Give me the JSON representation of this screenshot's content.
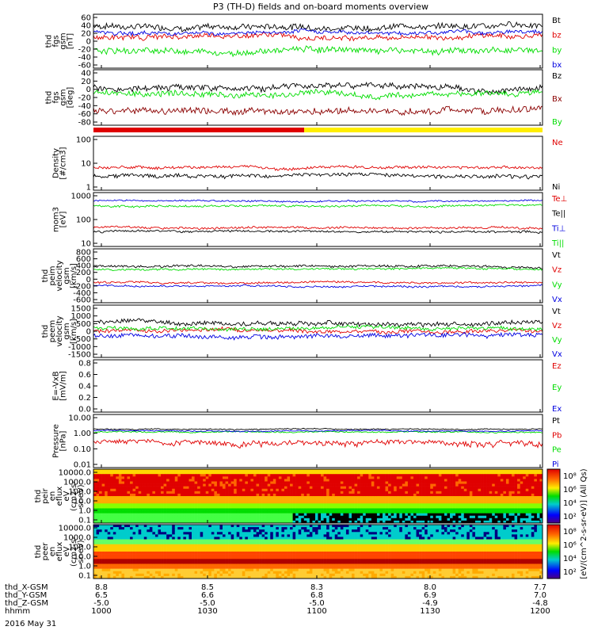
{
  "title": "P3 (TH-D) fields and on-board moments overview",
  "chart_data": [
    {
      "type": "line",
      "ylabel": [
        "thd",
        "fgs",
        "gsm",
        "[nT]"
      ],
      "yticks": [
        "60",
        "40",
        "20",
        "0",
        "-20",
        "-40",
        "-60"
      ],
      "ylim": [
        -60,
        60
      ],
      "series": [
        {
          "name": "Bt",
          "color": "#000000",
          "level": 35,
          "noise": 12
        },
        {
          "name": "bz",
          "color": "#e00000",
          "level": 10,
          "noise": 10
        },
        {
          "name": "by",
          "color": "#00dd00",
          "level": -20,
          "noise": 12
        },
        {
          "name": "bx",
          "color": "#0000e0",
          "level": 20,
          "noise": 8
        }
      ]
    },
    {
      "type": "line",
      "ylabel": [
        "thd",
        "fgs",
        "gsm",
        "[deg]"
      ],
      "yticks": [
        "40",
        "20",
        "0",
        "-20",
        "-40",
        "-60",
        "-80"
      ],
      "ylim": [
        -90,
        40
      ],
      "series": [
        {
          "name": "Bz",
          "color": "#000000",
          "level": 0,
          "noise": 12
        },
        {
          "name": "Bx",
          "color": "#8b0000",
          "level": -55,
          "noise": 14
        },
        {
          "name": "By",
          "color": "#00dd00",
          "level": -15,
          "noise": 12
        }
      ]
    },
    {
      "type": "line",
      "ylabel": [
        "Density",
        "[#/cm3]"
      ],
      "yticks": [
        "100",
        "10",
        "1"
      ],
      "log": true,
      "ylim": [
        1,
        100
      ],
      "series": [
        {
          "name": "Ne",
          "color": "#e00000",
          "level": 7,
          "noise": 1.5
        },
        {
          "name": "Ni",
          "color": "#000000",
          "level": 3.5,
          "noise": 1
        }
      ]
    },
    {
      "type": "line",
      "ylabel": [
        "mom3",
        "[eV]"
      ],
      "yticks": [
        "1000",
        "100",
        "10"
      ],
      "log": true,
      "ylim": [
        10,
        1000
      ],
      "series": [
        {
          "name": "Te⊥",
          "color": "#e00000",
          "level": 50,
          "noise": 8
        },
        {
          "name": "Te||",
          "color": "#000000",
          "level": 35,
          "noise": 6
        },
        {
          "name": "Ti⊥",
          "color": "#0000e0",
          "level": 500,
          "noise": 60
        },
        {
          "name": "Ti||",
          "color": "#00dd00",
          "level": 330,
          "noise": 50
        }
      ]
    },
    {
      "type": "line",
      "ylabel": [
        "thd",
        "peim",
        "velocity",
        "gsm",
        "[km/s]"
      ],
      "yticks": [
        "800",
        "600",
        "400",
        "200",
        "0",
        "-200",
        "-400",
        "-600"
      ],
      "ylim": [
        -700,
        900
      ],
      "series": [
        {
          "name": "Vt",
          "color": "#000000",
          "level": 380,
          "noise": 60
        },
        {
          "name": "Vz",
          "color": "#e00000",
          "level": -100,
          "noise": 50
        },
        {
          "name": "Vy",
          "color": "#00dd00",
          "level": 300,
          "noise": 50
        },
        {
          "name": "Vx",
          "color": "#0000e0",
          "level": -200,
          "noise": 50
        }
      ]
    },
    {
      "type": "line",
      "ylabel": [
        "thd",
        "peem",
        "velocity",
        "gsm",
        "[km/s]"
      ],
      "yticks": [
        "1500",
        "1000",
        "500",
        "0",
        "-500",
        "-1000",
        "-1500"
      ],
      "ylim": [
        -1600,
        1600
      ],
      "series": [
        {
          "name": "Vt",
          "color": "#000000",
          "level": 500,
          "noise": 250
        },
        {
          "name": "Vz",
          "color": "#e00000",
          "level": 0,
          "noise": 200
        },
        {
          "name": "Vy",
          "color": "#00dd00",
          "level": 200,
          "noise": 200
        },
        {
          "name": "Vx",
          "color": "#0000e0",
          "level": -300,
          "noise": 250
        }
      ]
    },
    {
      "type": "line",
      "ylabel": [
        "E=-VxB",
        "[mV/m]"
      ],
      "yticks": [
        "0.8",
        "0.6",
        "0.4",
        "0.2",
        "0.0"
      ],
      "ylim": [
        0,
        0.9
      ],
      "series": [
        {
          "name": "Ez",
          "color": "#e00000"
        },
        {
          "name": "Ey",
          "color": "#00dd00"
        },
        {
          "name": "Ex",
          "color": "#0000e0"
        }
      ]
    },
    {
      "type": "line",
      "ylabel": [
        "Pressure",
        "[nPa]"
      ],
      "yticks": [
        "10.00",
        "1.00",
        "0.10",
        "0.01"
      ],
      "log": true,
      "ylim": [
        0.01,
        10
      ],
      "series": [
        {
          "name": "Pt",
          "color": "#000000",
          "level": 1.5,
          "noise": 0.2
        },
        {
          "name": "Pb",
          "color": "#e00000",
          "level": 0.25,
          "noise": 0.15
        },
        {
          "name": "Pe",
          "color": "#00dd00",
          "level": 1.0,
          "noise": 0.15
        },
        {
          "name": "Pi",
          "color": "#0000e0",
          "level": 1.2,
          "noise": 0.15
        }
      ]
    },
    {
      "type": "heatmap",
      "ylabel": [
        "thd",
        "peir",
        "en",
        "eflux",
        "eV",
        "(cm2-s-",
        "sr-eV)"
      ],
      "yticks": [
        "10000.0",
        "1000.0",
        "100.0",
        "10.0",
        "1.0",
        "0.1"
      ]
    },
    {
      "type": "heatmap",
      "ylabel": [
        "thd",
        "peer",
        "en",
        "eflux",
        "eV",
        "(cm2-s-",
        "sr-eV)"
      ],
      "yticks": [
        "10000.0",
        "1000.0",
        "100.0",
        "10.0",
        "1.0",
        "0.1"
      ]
    }
  ],
  "colorbar": {
    "label": "[eV/(cm^2-s-sr-eV)] (All Qs)",
    "ticks": [
      "10⁸",
      "10⁶",
      "10⁴",
      "10²",
      "10⁸",
      "10⁶",
      "10⁴",
      "10²"
    ]
  },
  "x_axis": {
    "rows": [
      {
        "label": "thd_X-GSM",
        "values": [
          "8.8",
          "8.5",
          "8.3",
          "8.0",
          "7.7"
        ]
      },
      {
        "label": "thd_Y-GSM",
        "values": [
          "6.5",
          "6.6",
          "6.8",
          "6.9",
          "7.0"
        ]
      },
      {
        "label": "thd_Z-GSM",
        "values": [
          "-5.0",
          "-5.0",
          "-5.0",
          "-4.9",
          "-4.8"
        ]
      },
      {
        "label": "hhmm",
        "values": [
          "1000",
          "1030",
          "1100",
          "1130",
          "1200"
        ]
      }
    ],
    "date": "2016 May 31"
  }
}
